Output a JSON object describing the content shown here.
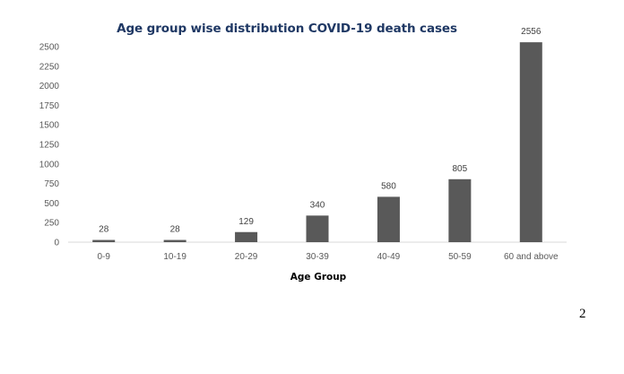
{
  "chart_data": {
    "type": "bar",
    "title": "Age group wise distribution COVID-19 death cases",
    "xlabel": "Age Group",
    "ylabel": "",
    "categories": [
      "0-9",
      "10-19",
      "20-29",
      "30-39",
      "40-49",
      "50-59",
      "60 and above"
    ],
    "values": [
      28,
      28,
      129,
      340,
      580,
      805,
      2556
    ],
    "ylim": [
      0,
      2500
    ],
    "yticks": [
      0,
      250,
      500,
      750,
      1000,
      1250,
      1500,
      1750,
      2000,
      2250,
      2500
    ],
    "grid": false,
    "legend": "none",
    "data_labels": true,
    "bar_color": "#595959",
    "axis_color": "#d9d9d9",
    "title_color": "#1f3864"
  },
  "page": {
    "number": "2"
  }
}
